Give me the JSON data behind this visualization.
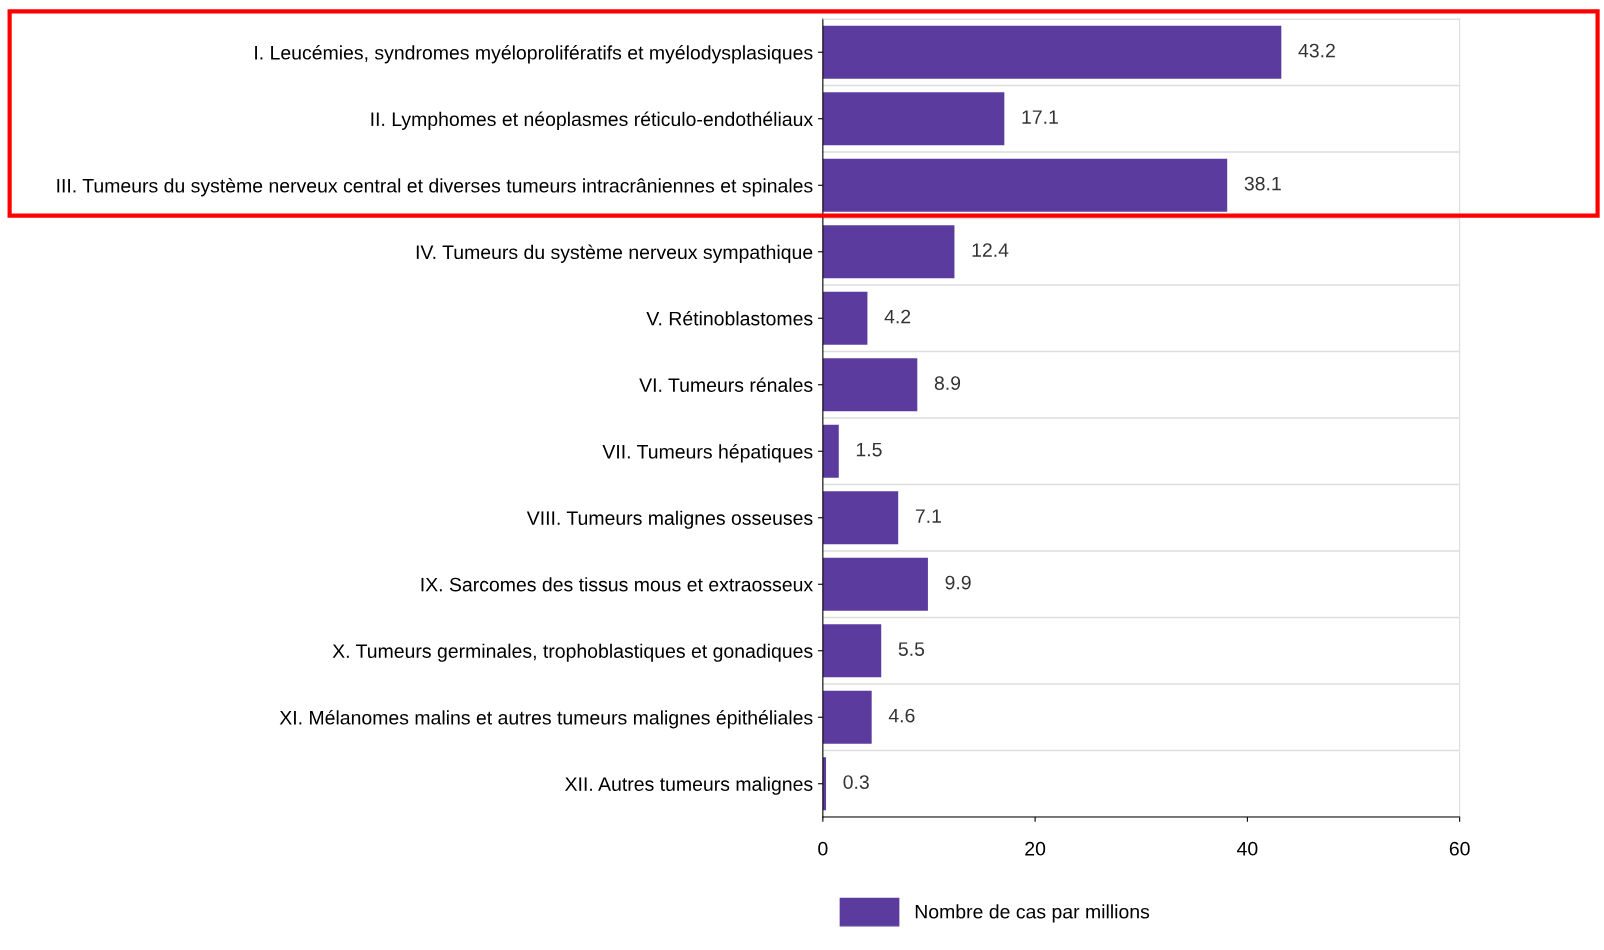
{
  "chart_data": {
    "type": "bar",
    "orientation": "horizontal",
    "categories": [
      "I. Leucémies, syndromes myéloprolifératifs et myélodysplasiques",
      "II. Lymphomes et néoplasmes réticulo-endothéliaux",
      "III. Tumeurs du système nerveux central et diverses tumeurs intracrâniennes et spinales",
      "IV. Tumeurs du système nerveux sympathique",
      "V. Rétinoblastomes",
      "VI. Tumeurs rénales",
      "VII. Tumeurs hépatiques",
      "VIII. Tumeurs malignes osseuses",
      "IX. Sarcomes des tissus mous et extraosseux",
      "X. Tumeurs germinales, trophoblastiques et gonadiques",
      "XI. Mélanomes malins et autres tumeurs malignes épithéliales",
      "XII. Autres tumeurs malignes"
    ],
    "series": [
      {
        "name": "Nombre de cas par millions",
        "color": "#5b3b9e",
        "values": [
          43.2,
          17.1,
          38.1,
          12.4,
          4.2,
          8.9,
          1.5,
          7.1,
          9.9,
          5.5,
          4.6,
          0.3
        ]
      }
    ],
    "xlim": [
      0,
      60
    ],
    "xticks": [
      0,
      20,
      40,
      60
    ],
    "data_labels": true,
    "grid": "y",
    "legend": "bottom"
  }
}
